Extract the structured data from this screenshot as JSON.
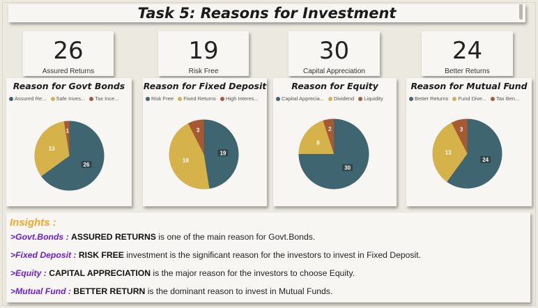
{
  "title": "Task 5: Reasons for Investment",
  "colors": {
    "teal": "#3f6670",
    "mustard": "#d6b24a",
    "rust": "#a65a34",
    "accent": "#f4a62a",
    "purple": "#6a1fd1"
  },
  "kpis": [
    {
      "value": "26",
      "label": "Assured Returns"
    },
    {
      "value": "19",
      "label": "Risk Free"
    },
    {
      "value": "30",
      "label": "Capital Appreciation"
    },
    {
      "value": "24",
      "label": "Better Returns"
    }
  ],
  "chart_data": [
    {
      "type": "pie",
      "title": "Reason for Govt Bonds",
      "categories": [
        "Assured Re...",
        "Safe Inves...",
        "Tax Ince..."
      ],
      "values": [
        26,
        13,
        1
      ],
      "colors": [
        "#3f6670",
        "#d6b24a",
        "#a65a34"
      ]
    },
    {
      "type": "pie",
      "title": "Reason for Fixed Deposit",
      "categories": [
        "Risk Free",
        "Fixed Returns",
        "High Interes..."
      ],
      "values": [
        19,
        18,
        3
      ],
      "colors": [
        "#3f6670",
        "#d6b24a",
        "#a65a34"
      ]
    },
    {
      "type": "pie",
      "title": "Reason for Equity",
      "categories": [
        "Capital Apprecia...",
        "Dividend",
        "Liquidity"
      ],
      "values": [
        30,
        8,
        2
      ],
      "colors": [
        "#3f6670",
        "#d6b24a",
        "#a65a34"
      ]
    },
    {
      "type": "pie",
      "title": "Reason for Mutual Fund",
      "categories": [
        "Better Returns",
        "Fund Dive...",
        "Tax Ben..."
      ],
      "values": [
        24,
        13,
        3
      ],
      "colors": [
        "#3f6670",
        "#d6b24a",
        "#a65a34"
      ]
    }
  ],
  "insights": {
    "heading": "Insights :",
    "lines": [
      {
        "prefix": ">Govt.Bonds :",
        "keyword": "ASSURED RETURNS",
        "text": " is one of the main reason for Govt.Bonds."
      },
      {
        "prefix": ">Fixed Deposit :",
        "keyword": "RISK FREE",
        "text": " investment is the significant reason for the investors to invest in Fixed Deposit."
      },
      {
        "prefix": ">Equity :",
        "keyword": "CAPITAL APPRECIATION",
        "text": " is the major reason for the investors to choose Equity."
      },
      {
        "prefix": ">Mutual Fund :",
        "keyword": "BETTER RETURN",
        "text": " is the dominant reason to invest in Mutual Funds."
      }
    ]
  }
}
